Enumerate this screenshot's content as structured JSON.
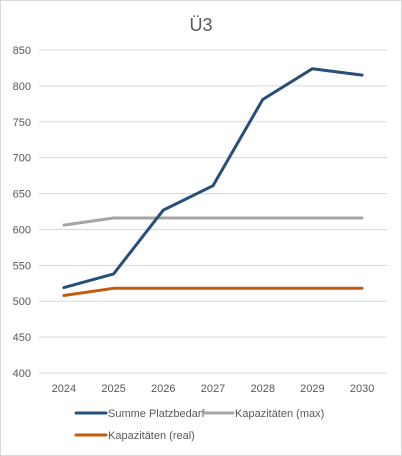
{
  "chart_data": {
    "type": "line",
    "title": "Ü3",
    "xlabel": "",
    "ylabel": "",
    "categories": [
      "2024",
      "2025",
      "2026",
      "2027",
      "2028",
      "2029",
      "2030"
    ],
    "ylim": [
      400,
      850
    ],
    "yticks": [
      400,
      450,
      500,
      550,
      600,
      650,
      700,
      750,
      800,
      850
    ],
    "grid": true,
    "legend_position": "bottom",
    "series": [
      {
        "name": "Summe Platzbedarf",
        "color": "#264f7a",
        "values": [
          519,
          538,
          627,
          661,
          781,
          824,
          815
        ]
      },
      {
        "name": "Kapazitäten (max)",
        "color": "#a5a5a5",
        "values": [
          606,
          616,
          616,
          616,
          616,
          616,
          616
        ]
      },
      {
        "name": "Kapazitäten (real)",
        "color": "#c55a11",
        "values": [
          508,
          518,
          518,
          518,
          518,
          518,
          518
        ]
      }
    ]
  }
}
